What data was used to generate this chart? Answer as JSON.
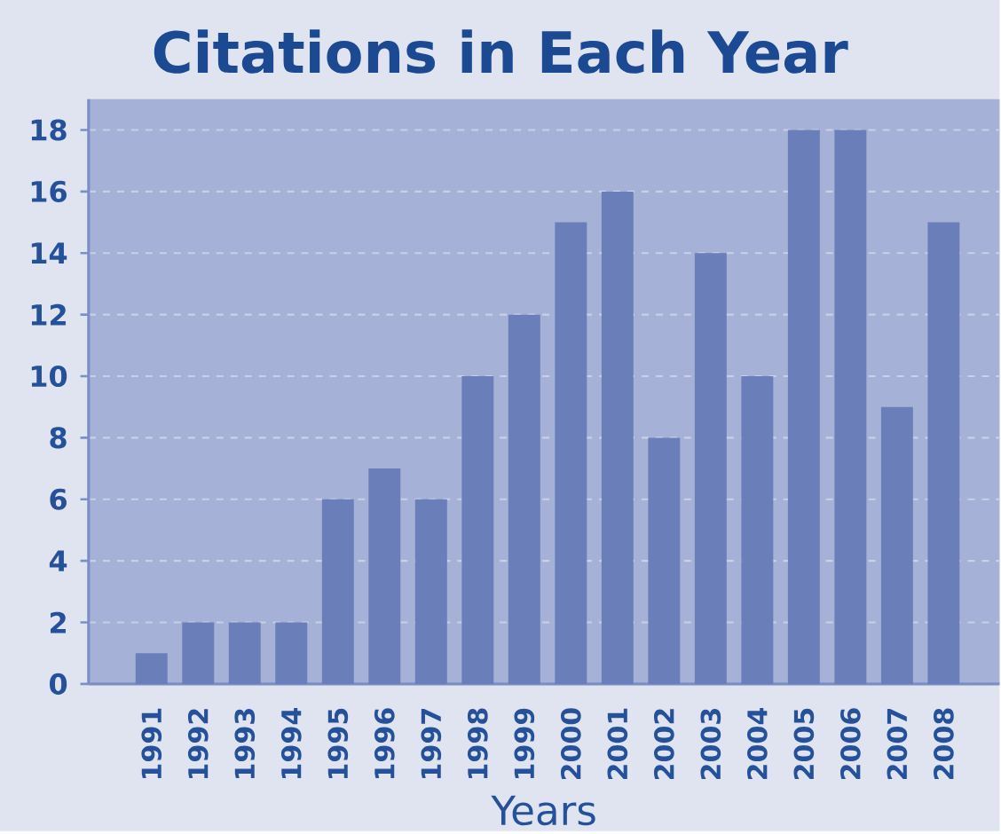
{
  "chart_data": {
    "type": "bar",
    "title": "Citations in Each Year",
    "xlabel": "Years",
    "categories": [
      "1991",
      "1992",
      "1993",
      "1994",
      "1995",
      "1996",
      "1997",
      "1998",
      "1999",
      "2000",
      "2001",
      "2002",
      "2003",
      "2004",
      "2005",
      "2006",
      "2007",
      "2008"
    ],
    "values": [
      1,
      2,
      2,
      2,
      6,
      7,
      6,
      10,
      12,
      15,
      16,
      8,
      14,
      10,
      18,
      18,
      9,
      15
    ],
    "color": "#6a7fb9",
    "ylim": [
      0,
      19
    ],
    "yticks": [
      0,
      2,
      4,
      6,
      8,
      10,
      12,
      14,
      16,
      18
    ],
    "grid": "y"
  }
}
